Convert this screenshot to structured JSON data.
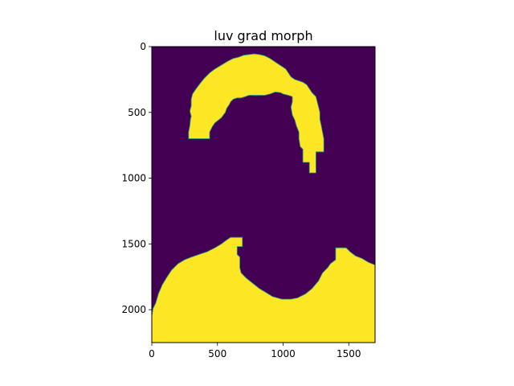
{
  "chart_data": {
    "type": "heatmap",
    "title": "luv grad morph",
    "xlabel": "",
    "ylabel": "",
    "xlim": [
      0,
      1700
    ],
    "ylim": [
      2250,
      0
    ],
    "x_ticks": [
      0,
      500,
      1000,
      1500
    ],
    "y_ticks": [
      0,
      500,
      1000,
      1500,
      2000
    ],
    "grid": false,
    "colormap": "viridis",
    "value_range": [
      0,
      1
    ],
    "colors": {
      "background": "#440154",
      "foreground": "#fde725",
      "edge": "#21918c"
    },
    "regions": [
      {
        "name": "upper-arc",
        "value": 1,
        "polygon": [
          [
            280,
            700
          ],
          [
            280,
            650
          ],
          [
            290,
            600
          ],
          [
            295,
            550
          ],
          [
            300,
            530
          ],
          [
            290,
            490
          ],
          [
            300,
            450
          ],
          [
            300,
            400
          ],
          [
            310,
            360
          ],
          [
            330,
            330
          ],
          [
            360,
            290
          ],
          [
            400,
            240
          ],
          [
            440,
            200
          ],
          [
            480,
            170
          ],
          [
            530,
            140
          ],
          [
            580,
            110
          ],
          [
            620,
            90
          ],
          [
            660,
            80
          ],
          [
            700,
            65
          ],
          [
            740,
            60
          ],
          [
            780,
            55
          ],
          [
            820,
            60
          ],
          [
            860,
            70
          ],
          [
            900,
            90
          ],
          [
            930,
            110
          ],
          [
            960,
            130
          ],
          [
            990,
            150
          ],
          [
            1020,
            170
          ],
          [
            1040,
            200
          ],
          [
            1060,
            230
          ],
          [
            1090,
            250
          ],
          [
            1120,
            260
          ],
          [
            1150,
            270
          ],
          [
            1180,
            290
          ],
          [
            1200,
            320
          ],
          [
            1220,
            350
          ],
          [
            1250,
            380
          ],
          [
            1260,
            420
          ],
          [
            1270,
            460
          ],
          [
            1280,
            500
          ],
          [
            1280,
            550
          ],
          [
            1290,
            600
          ],
          [
            1300,
            650
          ],
          [
            1310,
            700
          ],
          [
            1310,
            750
          ],
          [
            1310,
            800
          ],
          [
            1250,
            800
          ],
          [
            1250,
            880
          ],
          [
            1250,
            960
          ],
          [
            1200,
            960
          ],
          [
            1200,
            880
          ],
          [
            1150,
            880
          ],
          [
            1150,
            780
          ],
          [
            1130,
            760
          ],
          [
            1120,
            700
          ],
          [
            1120,
            650
          ],
          [
            1100,
            600
          ],
          [
            1090,
            560
          ],
          [
            1070,
            520
          ],
          [
            1060,
            460
          ],
          [
            1070,
            420
          ],
          [
            1070,
            380
          ],
          [
            1040,
            370
          ],
          [
            1000,
            360
          ],
          [
            980,
            350
          ],
          [
            940,
            345
          ],
          [
            900,
            360
          ],
          [
            860,
            370
          ],
          [
            820,
            370
          ],
          [
            780,
            370
          ],
          [
            740,
            370
          ],
          [
            710,
            380
          ],
          [
            680,
            390
          ],
          [
            650,
            390
          ],
          [
            620,
            400
          ],
          [
            600,
            420
          ],
          [
            590,
            440
          ],
          [
            570,
            470
          ],
          [
            560,
            500
          ],
          [
            530,
            540
          ],
          [
            480,
            580
          ],
          [
            460,
            610
          ],
          [
            440,
            650
          ],
          [
            440,
            700
          ],
          [
            400,
            700
          ],
          [
            350,
            700
          ]
        ]
      },
      {
        "name": "lower-arc",
        "value": 1,
        "polygon": [
          [
            0,
            2250
          ],
          [
            0,
            2050
          ],
          [
            10,
            1990
          ],
          [
            30,
            1950
          ],
          [
            50,
            1880
          ],
          [
            80,
            1810
          ],
          [
            110,
            1760
          ],
          [
            150,
            1700
          ],
          [
            200,
            1650
          ],
          [
            250,
            1620
          ],
          [
            300,
            1600
          ],
          [
            360,
            1580
          ],
          [
            420,
            1560
          ],
          [
            480,
            1530
          ],
          [
            530,
            1500
          ],
          [
            570,
            1470
          ],
          [
            600,
            1450
          ],
          [
            650,
            1450
          ],
          [
            690,
            1450
          ],
          [
            690,
            1520
          ],
          [
            650,
            1520
          ],
          [
            650,
            1580
          ],
          [
            670,
            1600
          ],
          [
            670,
            1680
          ],
          [
            680,
            1720
          ],
          [
            720,
            1760
          ],
          [
            770,
            1800
          ],
          [
            820,
            1840
          ],
          [
            870,
            1870
          ],
          [
            920,
            1900
          ],
          [
            990,
            1920
          ],
          [
            1060,
            1920
          ],
          [
            1110,
            1910
          ],
          [
            1170,
            1880
          ],
          [
            1220,
            1840
          ],
          [
            1270,
            1780
          ],
          [
            1300,
            1720
          ],
          [
            1340,
            1680
          ],
          [
            1360,
            1650
          ],
          [
            1400,
            1620
          ],
          [
            1400,
            1530
          ],
          [
            1480,
            1530
          ],
          [
            1510,
            1560
          ],
          [
            1550,
            1590
          ],
          [
            1600,
            1610
          ],
          [
            1650,
            1640
          ],
          [
            1700,
            1660
          ],
          [
            1700,
            2250
          ]
        ]
      }
    ]
  }
}
